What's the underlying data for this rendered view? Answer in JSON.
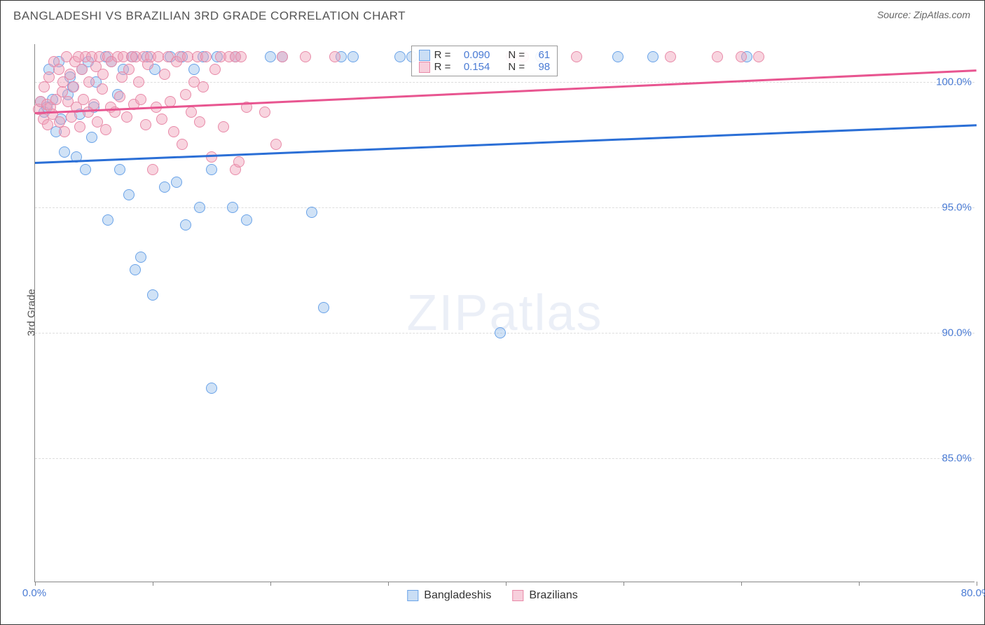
{
  "title": "BANGLADESHI VS BRAZILIAN 3RD GRADE CORRELATION CHART",
  "source": "Source: ZipAtlas.com",
  "watermark_strong": "ZIP",
  "watermark_light": "atlas",
  "y_axis_label": "3rd Grade",
  "chart": {
    "type": "scatter",
    "xlim": [
      0,
      80
    ],
    "ylim": [
      80,
      101.5
    ],
    "x_ticks": [
      0,
      10,
      20,
      30,
      40,
      50,
      60,
      70,
      80
    ],
    "x_tick_labels": {
      "0": "0.0%",
      "80": "80.0%"
    },
    "y_ticks": [
      85,
      90,
      95,
      100
    ],
    "y_tick_labels": {
      "85": "85.0%",
      "90": "90.0%",
      "95": "95.0%",
      "100": "100.0%"
    },
    "background_color": "#ffffff",
    "grid_color": "#dddddd",
    "axis_color": "#888888",
    "tick_label_color": "#4a7bd4",
    "marker_radius": 8,
    "marker_opacity": 0.45,
    "series": [
      {
        "name": "Bangladeshis",
        "color": "#6aa3e8",
        "fill": "rgba(150,190,235,0.45)",
        "R": "0.090",
        "N": "61",
        "trend": {
          "x1": 0,
          "y1": 96.8,
          "x2": 80,
          "y2": 98.3,
          "color": "#2b6fd6",
          "width": 2.5
        },
        "points": [
          [
            0.5,
            99.2
          ],
          [
            0.8,
            98.8
          ],
          [
            1.0,
            99.0
          ],
          [
            1.2,
            100.5
          ],
          [
            1.5,
            99.3
          ],
          [
            1.8,
            98.0
          ],
          [
            2.0,
            100.8
          ],
          [
            2.2,
            98.5
          ],
          [
            2.5,
            97.2
          ],
          [
            2.8,
            99.5
          ],
          [
            3.0,
            100.2
          ],
          [
            3.2,
            99.8
          ],
          [
            3.5,
            97.0
          ],
          [
            3.8,
            98.7
          ],
          [
            4.0,
            100.5
          ],
          [
            4.3,
            96.5
          ],
          [
            4.5,
            100.8
          ],
          [
            4.8,
            97.8
          ],
          [
            5.0,
            99.0
          ],
          [
            5.2,
            100.0
          ],
          [
            6.0,
            101.0
          ],
          [
            6.2,
            94.5
          ],
          [
            6.5,
            100.8
          ],
          [
            7.0,
            99.5
          ],
          [
            7.2,
            96.5
          ],
          [
            7.5,
            100.5
          ],
          [
            8.0,
            95.5
          ],
          [
            8.3,
            101.0
          ],
          [
            8.5,
            92.5
          ],
          [
            9.0,
            93.0
          ],
          [
            9.5,
            101.0
          ],
          [
            10.0,
            91.5
          ],
          [
            10.2,
            100.5
          ],
          [
            11.0,
            95.8
          ],
          [
            11.5,
            101.0
          ],
          [
            12.0,
            96.0
          ],
          [
            12.5,
            101.0
          ],
          [
            12.8,
            94.3
          ],
          [
            13.5,
            100.5
          ],
          [
            14.0,
            95.0
          ],
          [
            14.3,
            101.0
          ],
          [
            15.0,
            96.5
          ],
          [
            15.0,
            87.8
          ],
          [
            15.5,
            101.0
          ],
          [
            16.8,
            95.0
          ],
          [
            17.0,
            101.0
          ],
          [
            18.0,
            94.5
          ],
          [
            20.0,
            101.0
          ],
          [
            21.0,
            101.0
          ],
          [
            23.5,
            94.8
          ],
          [
            24.5,
            91.0
          ],
          [
            26.0,
            101.0
          ],
          [
            27.0,
            101.0
          ],
          [
            31.0,
            101.0
          ],
          [
            32.0,
            101.0
          ],
          [
            37.5,
            101.0
          ],
          [
            39.5,
            90.0
          ],
          [
            43.0,
            101.0
          ],
          [
            49.5,
            101.0
          ],
          [
            52.5,
            101.0
          ],
          [
            60.5,
            101.0
          ]
        ]
      },
      {
        "name": "Brazilians",
        "color": "#e88aa8",
        "fill": "rgba(240,160,185,0.45)",
        "R": "0.154",
        "N": "98",
        "trend": {
          "x1": 0,
          "y1": 98.8,
          "x2": 80,
          "y2": 100.5,
          "color": "#e85590",
          "width": 2.5
        },
        "points": [
          [
            0.3,
            98.9
          ],
          [
            0.5,
            99.2
          ],
          [
            0.7,
            98.5
          ],
          [
            0.8,
            99.8
          ],
          [
            1.0,
            99.1
          ],
          [
            1.1,
            98.3
          ],
          [
            1.2,
            100.2
          ],
          [
            1.3,
            99.0
          ],
          [
            1.5,
            98.7
          ],
          [
            1.6,
            100.8
          ],
          [
            1.8,
            99.3
          ],
          [
            2.0,
            100.5
          ],
          [
            2.1,
            98.4
          ],
          [
            2.3,
            99.6
          ],
          [
            2.4,
            100.0
          ],
          [
            2.5,
            98.0
          ],
          [
            2.7,
            101.0
          ],
          [
            2.8,
            99.2
          ],
          [
            3.0,
            100.3
          ],
          [
            3.1,
            98.6
          ],
          [
            3.3,
            99.8
          ],
          [
            3.4,
            100.8
          ],
          [
            3.5,
            99.0
          ],
          [
            3.7,
            101.0
          ],
          [
            3.8,
            98.2
          ],
          [
            4.0,
            100.5
          ],
          [
            4.1,
            99.3
          ],
          [
            4.3,
            101.0
          ],
          [
            4.5,
            98.8
          ],
          [
            4.6,
            100.0
          ],
          [
            4.8,
            101.0
          ],
          [
            5.0,
            99.1
          ],
          [
            5.2,
            100.6
          ],
          [
            5.3,
            98.4
          ],
          [
            5.5,
            101.0
          ],
          [
            5.7,
            99.7
          ],
          [
            5.8,
            100.3
          ],
          [
            6.0,
            98.1
          ],
          [
            6.2,
            101.0
          ],
          [
            6.4,
            99.0
          ],
          [
            6.5,
            100.8
          ],
          [
            6.8,
            98.8
          ],
          [
            7.0,
            101.0
          ],
          [
            7.2,
            99.4
          ],
          [
            7.4,
            100.2
          ],
          [
            7.5,
            101.0
          ],
          [
            7.8,
            98.6
          ],
          [
            8.0,
            100.5
          ],
          [
            8.2,
            101.0
          ],
          [
            8.4,
            99.1
          ],
          [
            8.6,
            101.0
          ],
          [
            8.8,
            100.0
          ],
          [
            9.0,
            99.3
          ],
          [
            9.2,
            101.0
          ],
          [
            9.4,
            98.3
          ],
          [
            9.6,
            100.7
          ],
          [
            9.8,
            101.0
          ],
          [
            10.0,
            96.5
          ],
          [
            10.3,
            99.0
          ],
          [
            10.5,
            101.0
          ],
          [
            10.8,
            98.5
          ],
          [
            11.0,
            100.3
          ],
          [
            11.3,
            101.0
          ],
          [
            11.5,
            99.2
          ],
          [
            11.8,
            98.0
          ],
          [
            12.0,
            100.8
          ],
          [
            12.3,
            101.0
          ],
          [
            12.5,
            97.5
          ],
          [
            12.8,
            99.5
          ],
          [
            13.0,
            101.0
          ],
          [
            13.3,
            98.8
          ],
          [
            13.5,
            100.0
          ],
          [
            13.8,
            101.0
          ],
          [
            14.0,
            98.4
          ],
          [
            14.3,
            99.8
          ],
          [
            14.5,
            101.0
          ],
          [
            15.0,
            97.0
          ],
          [
            15.3,
            100.5
          ],
          [
            15.8,
            101.0
          ],
          [
            16.0,
            98.2
          ],
          [
            16.5,
            101.0
          ],
          [
            17.0,
            96.5
          ],
          [
            17.0,
            101.0
          ],
          [
            17.3,
            96.8
          ],
          [
            17.5,
            101.0
          ],
          [
            18.0,
            99.0
          ],
          [
            19.5,
            98.8
          ],
          [
            20.5,
            97.5
          ],
          [
            21.0,
            101.0
          ],
          [
            23.0,
            101.0
          ],
          [
            25.5,
            101.0
          ],
          [
            40.5,
            101.0
          ],
          [
            41.5,
            101.0
          ],
          [
            46.0,
            101.0
          ],
          [
            54.0,
            101.0
          ],
          [
            58.0,
            101.0
          ],
          [
            60.0,
            101.0
          ],
          [
            61.5,
            101.0
          ]
        ]
      }
    ]
  },
  "legend_box": {
    "rows": [
      {
        "swatch_fill": "rgba(150,190,235,0.5)",
        "swatch_border": "#6aa3e8",
        "r_label": "R =",
        "r_val": "0.090",
        "n_label": "N =",
        "n_val": "61"
      },
      {
        "swatch_fill": "rgba(240,160,185,0.5)",
        "swatch_border": "#e88aa8",
        "r_label": "R =",
        "r_val": "0.154",
        "n_label": "N =",
        "n_val": "98"
      }
    ]
  },
  "bottom_legend": [
    {
      "swatch_fill": "rgba(150,190,235,0.5)",
      "swatch_border": "#6aa3e8",
      "label": "Bangladeshis"
    },
    {
      "swatch_fill": "rgba(240,160,185,0.5)",
      "swatch_border": "#e88aa8",
      "label": "Brazilians"
    }
  ]
}
